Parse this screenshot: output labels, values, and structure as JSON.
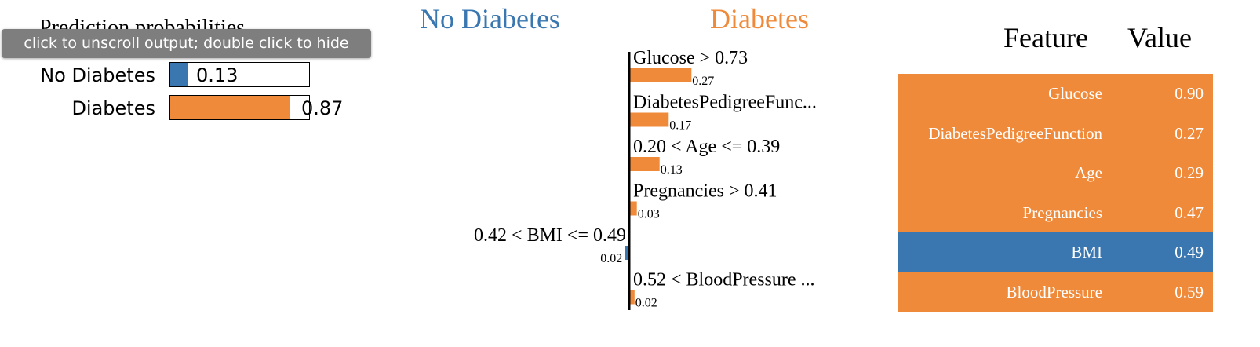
{
  "prediction_panel": {
    "title": "Prediction probabilities",
    "tooltip": "click to unscroll output; double click to hide",
    "rows": [
      {
        "label": "No Diabetes",
        "value": 0.13,
        "value_text": "0.13",
        "color": "#3a77b0"
      },
      {
        "label": "Diabetes",
        "value": 0.87,
        "value_text": "0.87",
        "color": "#ef8a3a"
      }
    ]
  },
  "explanation": {
    "negative_class": "No Diabetes",
    "positive_class": "Diabetes",
    "negative_color": "#3a77b0",
    "positive_color": "#ef8a3a"
  },
  "chart_data": {
    "type": "bar",
    "orientation": "horizontal",
    "categories": [
      "Glucose > 0.73",
      "DiabetesPedigreeFunc...",
      "0.20 < Age <= 0.39",
      "Pregnancies > 0.41",
      "0.42 < BMI <= 0.49",
      "0.52 < BloodPressure ..."
    ],
    "values": [
      0.27,
      0.17,
      0.13,
      0.03,
      -0.02,
      0.02
    ],
    "value_labels": [
      "0.27",
      "0.17",
      "0.13",
      "0.03",
      "0.02",
      "0.02"
    ],
    "classes": [
      "No Diabetes",
      "Diabetes"
    ]
  },
  "feature_table": {
    "headers": {
      "feature": "Feature",
      "value": "Value"
    },
    "rows": [
      {
        "feature": "Glucose",
        "value": "0.90",
        "color": "#ef8a3a"
      },
      {
        "feature": "DiabetesPedigreeFunction",
        "value": "0.27",
        "color": "#ef8a3a"
      },
      {
        "feature": "Age",
        "value": "0.29",
        "color": "#ef8a3a"
      },
      {
        "feature": "Pregnancies",
        "value": "0.47",
        "color": "#ef8a3a"
      },
      {
        "feature": "BMI",
        "value": "0.49",
        "color": "#3a77b0"
      },
      {
        "feature": "BloodPressure",
        "value": "0.59",
        "color": "#ef8a3a"
      }
    ]
  }
}
